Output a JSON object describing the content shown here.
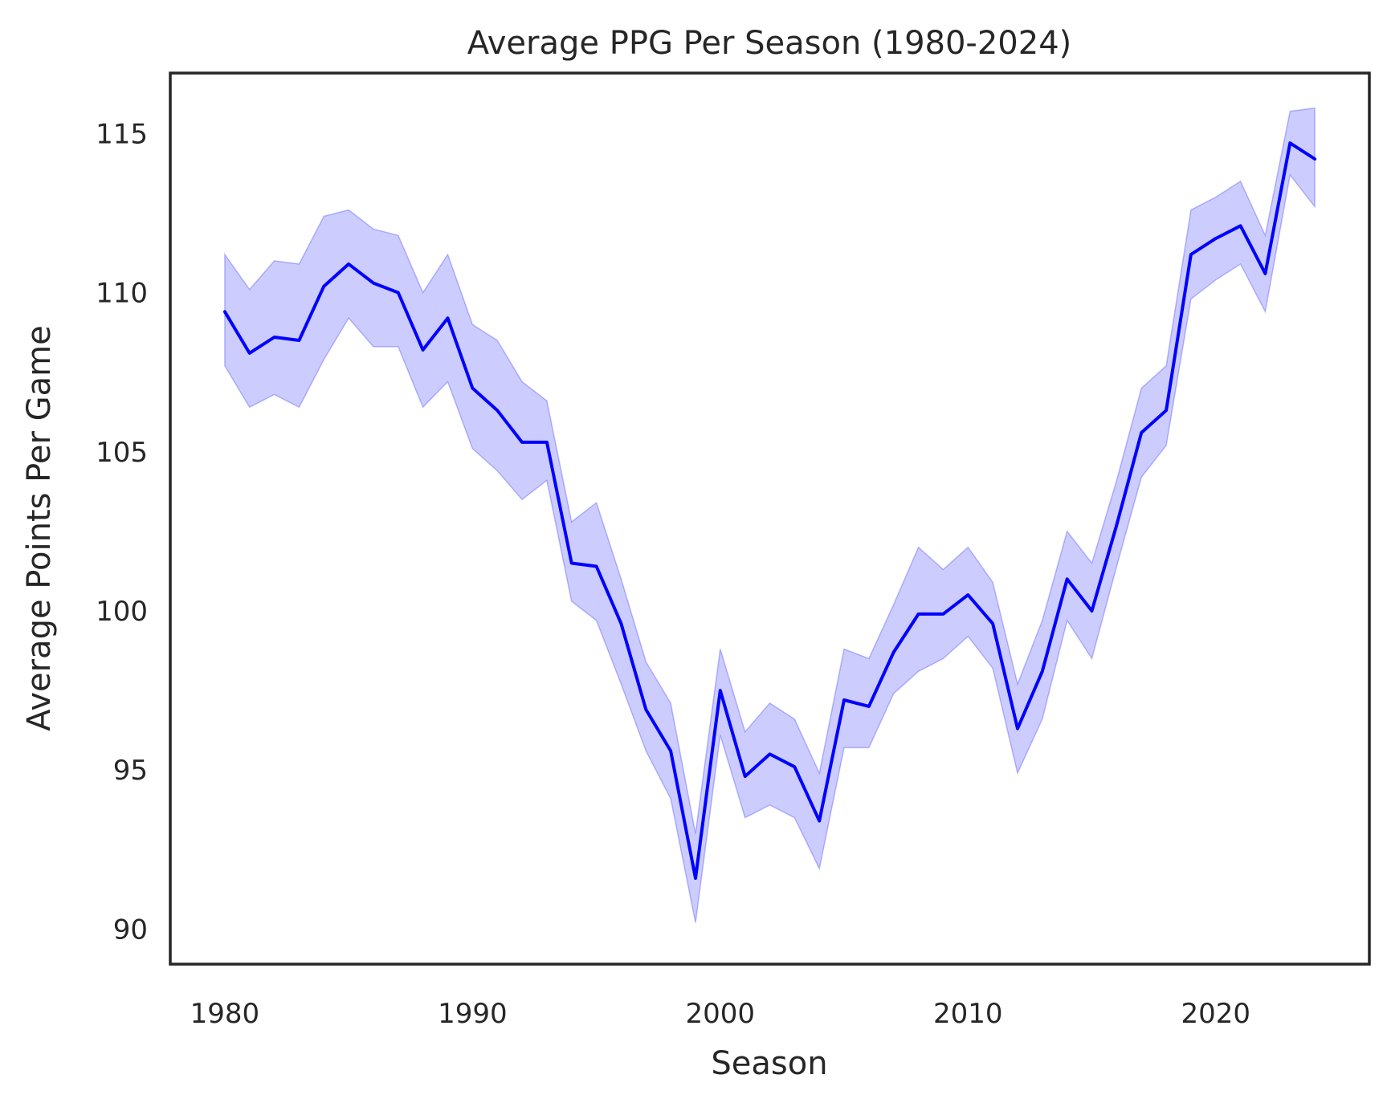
{
  "chart_data": {
    "type": "line",
    "title": "Average PPG Per Season (1980-2024)",
    "xlabel": "Season",
    "ylabel": "Average Points Per Game",
    "xlim": [
      1977.8,
      2026.2
    ],
    "ylim": [
      88.9,
      116.9
    ],
    "x_ticks": [
      1980,
      1990,
      2000,
      2010,
      2020
    ],
    "y_ticks": [
      90,
      95,
      100,
      105,
      110,
      115
    ],
    "grid": false,
    "legend": "none",
    "colors": {
      "line": "#0000ff",
      "band": "#0000ff",
      "frame": "#262626",
      "text": "#262626"
    },
    "series": [
      {
        "x": [
          1980,
          1981,
          1982,
          1983,
          1984,
          1985,
          1986,
          1987,
          1988,
          1989,
          1990,
          1991,
          1992,
          1993,
          1994,
          1995,
          1996,
          1997,
          1998,
          1999,
          2000,
          2001,
          2002,
          2003,
          2004,
          2005,
          2006,
          2007,
          2008,
          2009,
          2010,
          2011,
          2012,
          2013,
          2014,
          2015,
          2016,
          2017,
          2018,
          2019,
          2020,
          2021,
          2022,
          2023,
          2024
        ],
        "y": [
          109.4,
          108.1,
          108.6,
          108.5,
          110.2,
          110.9,
          110.3,
          110.0,
          108.2,
          109.2,
          107.0,
          106.3,
          105.3,
          105.3,
          101.5,
          101.4,
          99.6,
          96.9,
          95.6,
          91.6,
          97.5,
          94.8,
          95.5,
          95.1,
          93.4,
          97.2,
          97.0,
          98.7,
          99.9,
          99.9,
          100.5,
          99.6,
          96.3,
          98.1,
          101.0,
          100.0,
          102.7,
          105.6,
          106.3,
          111.2,
          111.7,
          112.1,
          110.6,
          114.7,
          114.2
        ],
        "ci_low": [
          107.7,
          106.4,
          106.8,
          106.4,
          107.9,
          109.2,
          108.3,
          108.3,
          106.4,
          107.2,
          105.1,
          104.4,
          103.5,
          104.1,
          100.3,
          99.7,
          97.7,
          95.6,
          94.1,
          90.2,
          96.1,
          93.5,
          93.9,
          93.5,
          91.9,
          95.7,
          95.7,
          97.4,
          98.1,
          98.5,
          99.2,
          98.2,
          94.9,
          96.6,
          99.7,
          98.5,
          101.4,
          104.2,
          105.2,
          109.8,
          110.4,
          110.9,
          109.4,
          113.7,
          112.7
        ],
        "ci_high": [
          111.2,
          110.1,
          111.0,
          110.9,
          112.4,
          112.6,
          112.0,
          111.8,
          110.0,
          111.2,
          109.0,
          108.5,
          107.2,
          106.6,
          102.8,
          103.4,
          101.0,
          98.4,
          97.1,
          93.0,
          98.8,
          96.2,
          97.1,
          96.6,
          94.9,
          98.8,
          98.5,
          100.2,
          102.0,
          101.3,
          102.0,
          100.9,
          97.7,
          99.7,
          102.5,
          101.5,
          104.1,
          107.0,
          107.7,
          112.6,
          113.0,
          113.5,
          111.8,
          115.7,
          115.8
        ]
      }
    ]
  }
}
